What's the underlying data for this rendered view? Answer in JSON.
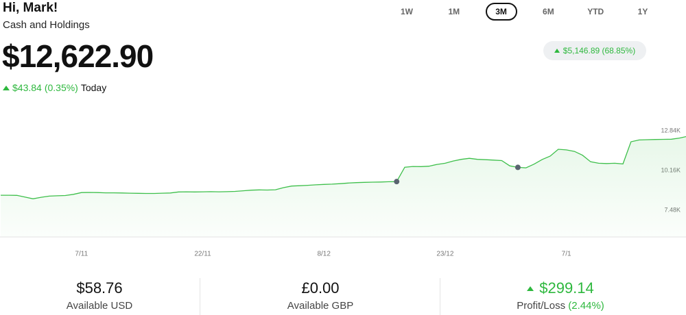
{
  "header": {
    "greeting": "Hi, Mark!",
    "subtitle": "Cash and Holdings",
    "balance": "$12,622.90",
    "change": "$43.84",
    "change_percent": "(0.35%)",
    "period": "Today"
  },
  "timeframes": {
    "options": [
      "1W",
      "1M",
      "3M",
      "6M",
      "YTD",
      "1Y"
    ],
    "selected": 2
  },
  "period_change": "$5,146.89 (68.85%)",
  "chart_data": {
    "type": "line",
    "color": "#3dbf4a",
    "categories": [
      null,
      null,
      null,
      null,
      null,
      null,
      null,
      null,
      null,
      null,
      "7/11",
      null,
      null,
      null,
      null,
      null,
      null,
      null,
      null,
      null,
      null,
      null,
      null,
      null,
      null,
      "22/11",
      null,
      null,
      null,
      null,
      null,
      null,
      null,
      null,
      null,
      null,
      null,
      null,
      null,
      null,
      "8/12",
      null,
      null,
      null,
      null,
      null,
      null,
      null,
      null,
      null,
      null,
      null,
      null,
      null,
      null,
      "23/12",
      null,
      null,
      null,
      null,
      null,
      null,
      null,
      null,
      null,
      null,
      null,
      null,
      null,
      null,
      "7/1",
      null,
      null,
      null,
      null,
      null,
      null,
      null,
      null,
      null,
      null,
      null,
      null,
      null,
      null,
      null
    ],
    "values": [
      8540,
      8540,
      8530,
      8420,
      8300,
      8400,
      8480,
      8500,
      8520,
      8600,
      8720,
      8730,
      8720,
      8700,
      8700,
      8690,
      8680,
      8670,
      8660,
      8660,
      8680,
      8690,
      8760,
      8770,
      8760,
      8770,
      8780,
      8770,
      8780,
      8800,
      8840,
      8880,
      8900,
      8890,
      8910,
      9050,
      9160,
      9180,
      9210,
      9240,
      9270,
      9290,
      9320,
      9360,
      9390,
      9410,
      9420,
      9430,
      9450,
      9460,
      10430,
      10480,
      10470,
      10500,
      10620,
      10700,
      10850,
      10960,
      11030,
      10960,
      10940,
      10910,
      10880,
      10520,
      10420,
      10390,
      10640,
      10950,
      11180,
      11640,
      11600,
      11500,
      11240,
      10800,
      10700,
      10680,
      10700,
      10650,
      12150,
      12270,
      12290,
      12300,
      12310,
      12320,
      12400,
      12520
    ],
    "marked_points": [
      49,
      64
    ],
    "ylim": [
      5770,
      13860
    ],
    "yticks": [
      {
        "value": 12840,
        "label": "12.84K"
      },
      {
        "value": 10160,
        "label": "10.16K"
      },
      {
        "value": 7480,
        "label": "7.48K"
      }
    ]
  },
  "summary": {
    "usd": {
      "value": "$58.76",
      "label": "Available USD"
    },
    "gbp": {
      "value": "£0.00",
      "label": "Available GBP"
    },
    "pnl": {
      "value": "$299.14",
      "label": "Profit/Loss",
      "percent": "(2.44%)"
    }
  }
}
